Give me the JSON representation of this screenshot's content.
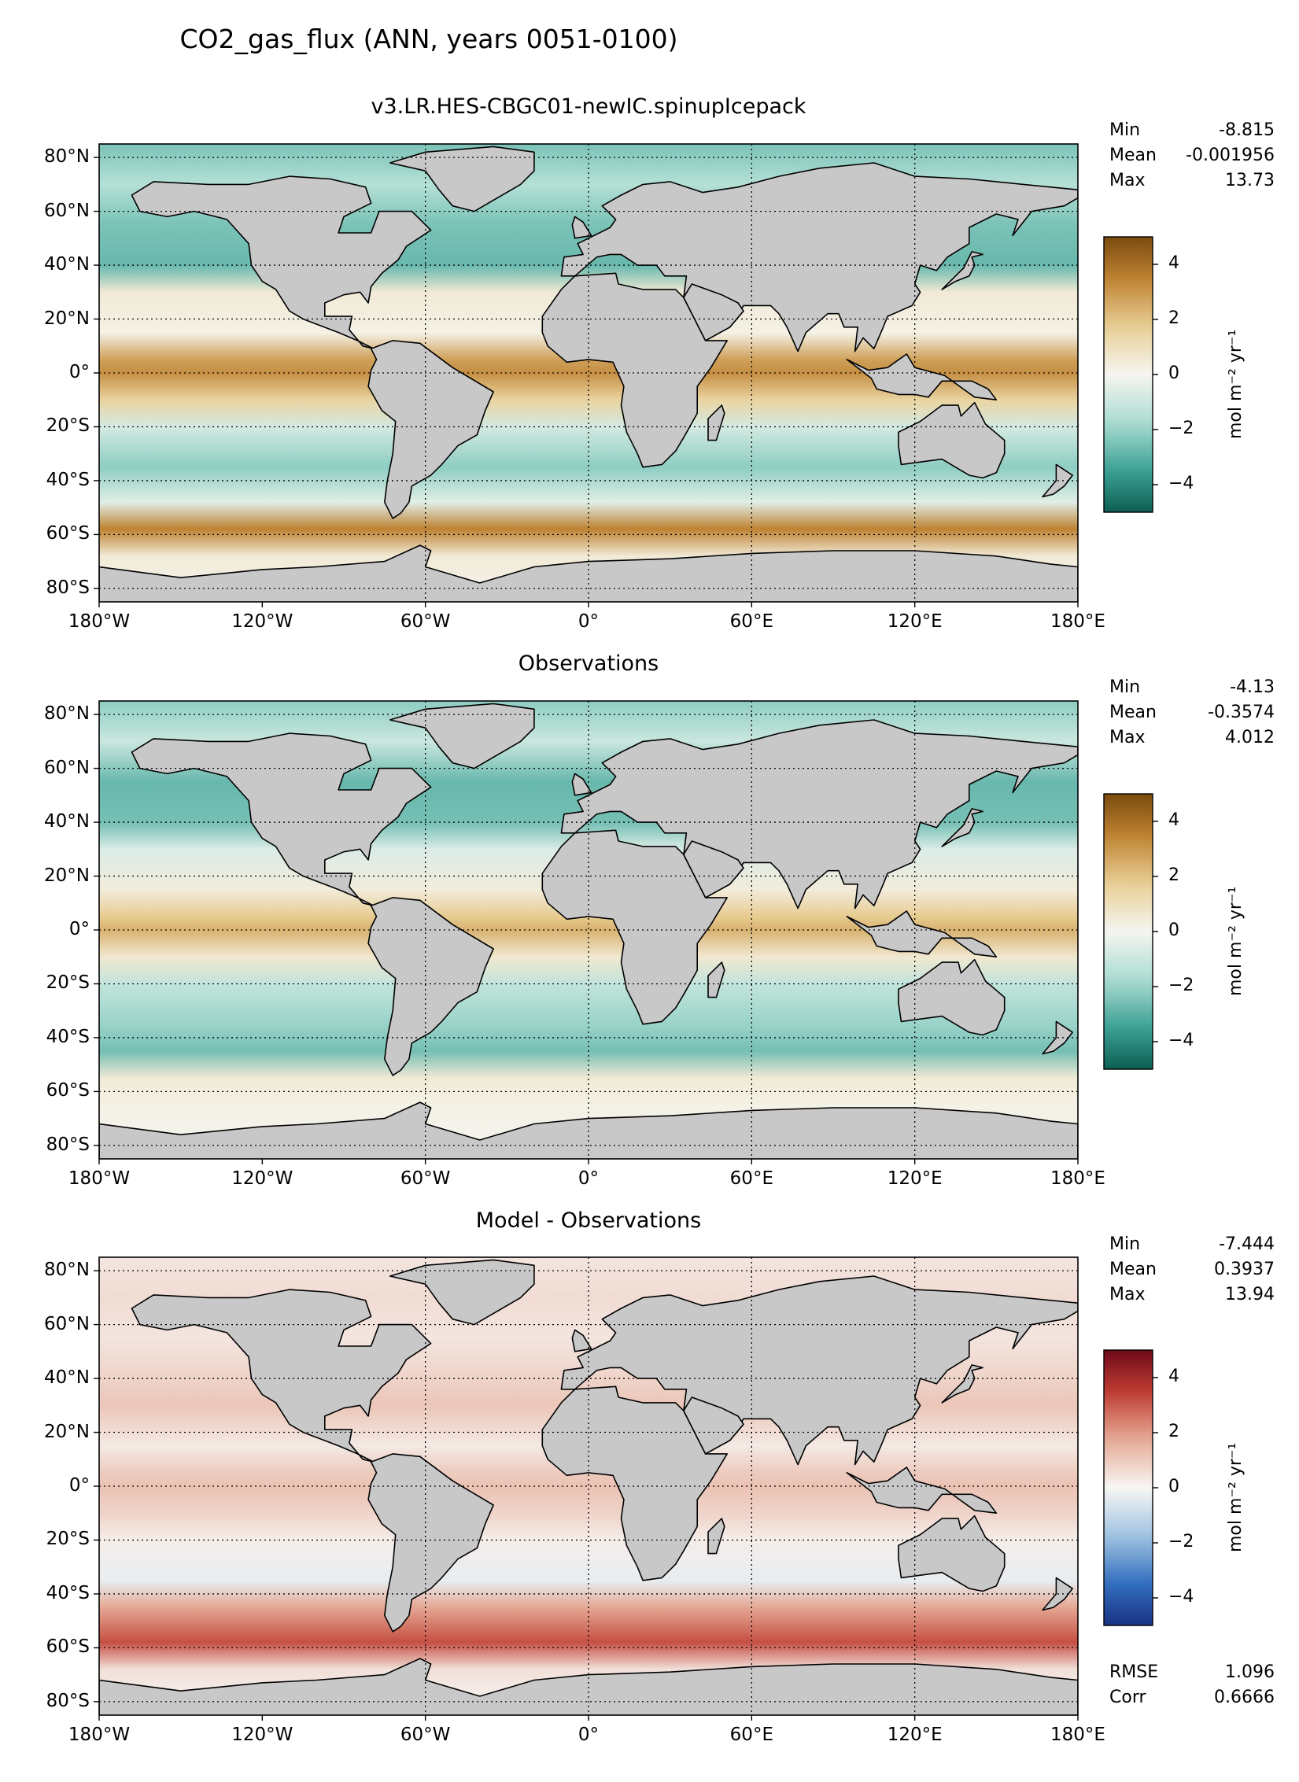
{
  "figure": {
    "title": "CO2_gas_flux (ANN, years 0051-0100)"
  },
  "panels": [
    {
      "id": "test",
      "title": "v3.LR.HES-CBGC01-newIC.spinupIcepack",
      "stats": [
        {
          "label": "Min",
          "value": "-8.815"
        },
        {
          "label": "Mean",
          "value": "-0.001956"
        },
        {
          "label": "Max",
          "value": "13.73"
        }
      ],
      "colormap": "brown-teal",
      "cbar_label": "mol m⁻² yr⁻¹",
      "cbar_ticks": [
        "4",
        "2",
        "0",
        "−2",
        "−4"
      ]
    },
    {
      "id": "reference",
      "title": "Observations",
      "stats": [
        {
          "label": "Min",
          "value": "-4.13"
        },
        {
          "label": "Mean",
          "value": "-0.3574"
        },
        {
          "label": "Max",
          "value": "4.012"
        }
      ],
      "colormap": "brown-teal",
      "cbar_label": "mol m⁻² yr⁻¹",
      "cbar_ticks": [
        "4",
        "2",
        "0",
        "−2",
        "−4"
      ]
    },
    {
      "id": "diff",
      "title": "Model - Observations",
      "stats": [
        {
          "label": "Min",
          "value": "-7.444"
        },
        {
          "label": "Mean",
          "value": "0.3937"
        },
        {
          "label": "Max",
          "value": "13.94"
        }
      ],
      "extra_stats": [
        {
          "label": "RMSE",
          "value": "1.096"
        },
        {
          "label": "Corr",
          "value": "0.6666"
        }
      ],
      "colormap": "red-blue",
      "cbar_label": "mol m⁻² yr⁻¹",
      "cbar_ticks": [
        "4",
        "2",
        "0",
        "−2",
        "−4"
      ]
    }
  ],
  "axes": {
    "lat_ticks": [
      "80°N",
      "60°N",
      "40°N",
      "20°N",
      "0°",
      "20°S",
      "40°S",
      "60°S",
      "80°S"
    ],
    "lon_ticks": [
      "180°W",
      "120°W",
      "60°W",
      "0°",
      "60°E",
      "120°E",
      "180°E"
    ]
  },
  "colors": {
    "land": "#c8c8c8",
    "brown_strong": "#7a4a0e",
    "teal_strong": "#0d5e52",
    "red_strong": "#6e0a1a",
    "blue_strong": "#1f3f8f"
  }
}
